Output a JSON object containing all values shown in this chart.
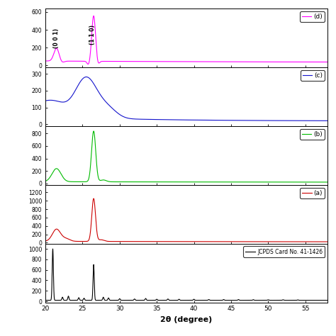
{
  "xlabel": "2θ (degree)",
  "x_min": 20,
  "x_max": 58,
  "panels": [
    {
      "label": "(d)",
      "color": "#FF00FF",
      "yticks": [
        0,
        200,
        400,
        600
      ],
      "ylim": [
        -20,
        640
      ],
      "type": "d"
    },
    {
      "label": "(c)",
      "color": "#1414CC",
      "yticks": [
        0,
        100,
        200,
        300
      ],
      "ylim": [
        -10,
        340
      ],
      "type": "c"
    },
    {
      "label": "(b)",
      "color": "#00BB00",
      "yticks": [
        0,
        200,
        400,
        600,
        800
      ],
      "ylim": [
        -20,
        920
      ],
      "type": "b"
    },
    {
      "label": "(a)",
      "color": "#CC0000",
      "yticks": [
        0,
        200,
        400,
        600,
        800,
        1000,
        1200
      ],
      "ylim": [
        -20,
        1380
      ],
      "type": "a"
    },
    {
      "label": "JCPDS Card No. 41-1426",
      "color": "#000000",
      "yticks": [
        0,
        200,
        400,
        600,
        800,
        1000
      ],
      "ylim": [
        -20,
        1100
      ],
      "type": "jcpds"
    }
  ],
  "background_color": "#ffffff"
}
